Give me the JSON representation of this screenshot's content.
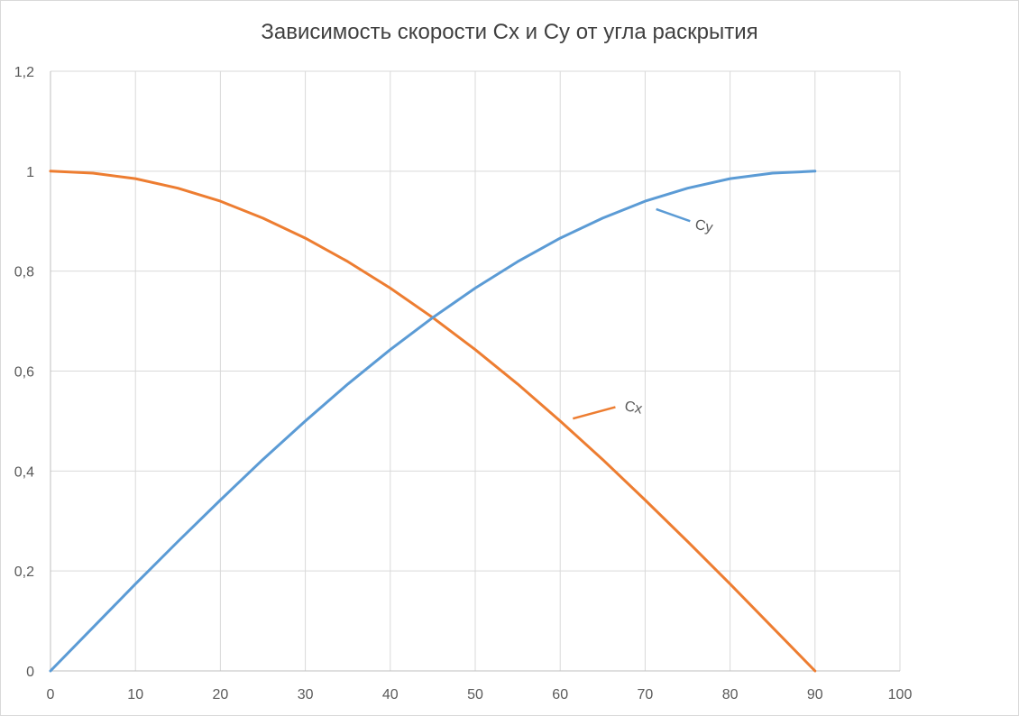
{
  "chart_data": {
    "type": "line",
    "title": "Зависимость скорости Cx и Cy от угла раскрытия",
    "xlabel": "",
    "ylabel": "",
    "xlim": [
      0,
      100
    ],
    "ylim": [
      0,
      1.2
    ],
    "x_ticks": [
      "0",
      "10",
      "20",
      "30",
      "40",
      "50",
      "60",
      "70",
      "80",
      "90",
      "100"
    ],
    "y_ticks": [
      "0",
      "0,2",
      "0,4",
      "0,6",
      "0,8",
      "1",
      "1,2"
    ],
    "x_tick_values": [
      0,
      10,
      20,
      30,
      40,
      50,
      60,
      70,
      80,
      90,
      100
    ],
    "y_tick_values": [
      0,
      0.2,
      0.4,
      0.6,
      0.8,
      1.0,
      1.2
    ],
    "grid": true,
    "legend": "none",
    "x": [
      0,
      5,
      10,
      15,
      20,
      25,
      30,
      35,
      40,
      45,
      50,
      55,
      60,
      65,
      70,
      75,
      80,
      85,
      90
    ],
    "series": [
      {
        "name": "Cx",
        "color": "#ed7d31",
        "values": [
          1.0,
          0.996,
          0.985,
          0.966,
          0.94,
          0.906,
          0.866,
          0.819,
          0.766,
          0.707,
          0.643,
          0.574,
          0.5,
          0.423,
          0.342,
          0.259,
          0.174,
          0.087,
          0.0
        ],
        "label": {
          "text": "Cx",
          "line_from": [
            61.5,
            0.505
          ],
          "line_to": [
            66.5,
            0.528
          ],
          "text_at": [
            67.5,
            0.522
          ]
        }
      },
      {
        "name": "Cy",
        "color": "#5b9bd5",
        "values": [
          0.0,
          0.087,
          0.174,
          0.259,
          0.342,
          0.423,
          0.5,
          0.574,
          0.643,
          0.707,
          0.766,
          0.819,
          0.866,
          0.906,
          0.94,
          0.966,
          0.985,
          0.996,
          1.0
        ],
        "label": {
          "text": "Cy",
          "line_from": [
            71.3,
            0.924
          ],
          "line_to": [
            75.3,
            0.9
          ],
          "text_at": [
            75.8,
            0.885
          ]
        }
      }
    ]
  }
}
